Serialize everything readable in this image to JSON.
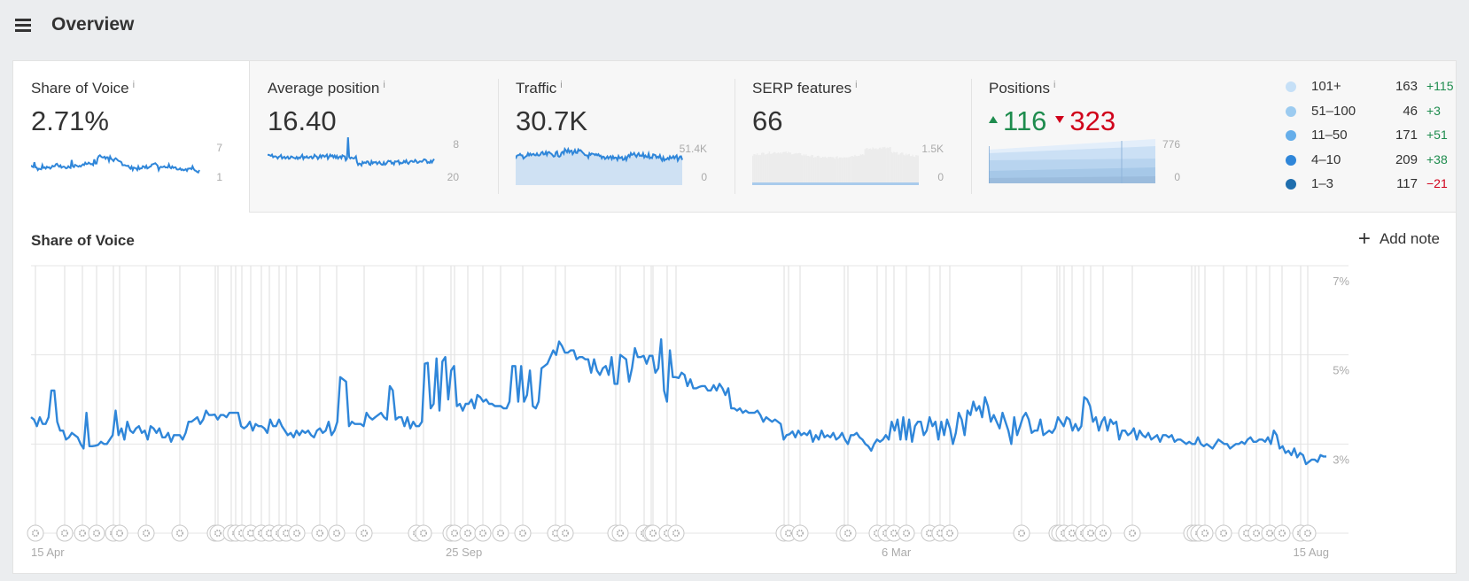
{
  "header": {
    "title": "Overview",
    "menu_icon": "hamburger-menu-icon"
  },
  "cards": [
    {
      "id": "share-of-voice",
      "label": "Share of Voice",
      "info": "i",
      "value": "2.71%",
      "axis_top": "7",
      "axis_bottom": "1",
      "active": true
    },
    {
      "id": "average-position",
      "label": "Average position",
      "info": "i",
      "value": "16.40",
      "axis_top": "8",
      "axis_bottom": "20"
    },
    {
      "id": "traffic",
      "label": "Traffic",
      "info": "i",
      "value": "30.7K",
      "axis_top": "51.4K",
      "axis_bottom": "0"
    },
    {
      "id": "serp-features",
      "label": "SERP features",
      "info": "i",
      "value": "66",
      "axis_top": "1.5K",
      "axis_bottom": "0"
    },
    {
      "id": "positions",
      "label": "Positions",
      "info": "i",
      "up": "116",
      "down": "323",
      "axis_top": "776",
      "axis_bottom": "0"
    }
  ],
  "positions_legend": [
    {
      "label": "101+",
      "count": "163",
      "delta": "+115",
      "color": "#c6e0f7",
      "trend": "up"
    },
    {
      "label": "51–100",
      "count": "46",
      "delta": "+3",
      "color": "#9ccbf0",
      "trend": "up"
    },
    {
      "label": "11–50",
      "count": "171",
      "delta": "+51",
      "color": "#66aeea",
      "trend": "up"
    },
    {
      "label": "4–10",
      "count": "209",
      "delta": "+38",
      "color": "#2f86d9",
      "trend": "up"
    },
    {
      "label": "1–3",
      "count": "117",
      "delta": "−21",
      "color": "#1f6eae",
      "trend": "down"
    }
  ],
  "colors": {
    "line": "#2f86d9",
    "up": "#1e8c4e",
    "down": "#d0021b",
    "grid": "#e6e6e6"
  },
  "chart": {
    "title": "Share of Voice",
    "add_note_label": "Add note"
  },
  "chart_data": {
    "type": "line",
    "title": "Share of Voice",
    "xlabel": "",
    "ylabel": "",
    "y_ticks": [
      "7%",
      "5%",
      "3%"
    ],
    "ylim": [
      1,
      7
    ],
    "x_tick_labels": [
      "15 Apr",
      "25 Sep",
      "6 Mar",
      "15 Aug"
    ],
    "grid": true,
    "series": [
      {
        "name": "Share of Voice",
        "values": [
          3.6,
          3.55,
          3.4,
          3.6,
          3.45,
          3.45,
          3.6,
          4.2,
          4.2,
          3.5,
          3.3,
          3.3,
          3.1,
          3.15,
          3.25,
          3.2,
          3.15,
          3.0,
          2.9,
          3.7,
          2.95,
          2.95,
          2.96,
          2.98,
          3.05,
          3.0,
          3.0,
          3.1,
          3.2,
          3.75,
          3.2,
          3.35,
          3.1,
          3.5,
          3.3,
          3.25,
          3.35,
          3.4,
          3.25,
          3.3,
          3.1,
          3.4,
          3.35,
          3.25,
          3.35,
          3.15,
          3.15,
          3.25,
          3.05,
          3.2,
          3.2,
          3.2,
          3.1,
          3.25,
          3.5,
          3.5,
          3.55,
          3.6,
          3.45,
          3.55,
          3.75,
          3.65,
          3.65,
          3.66,
          3.55,
          3.65,
          3.65,
          3.6,
          3.7,
          3.7,
          3.7,
          3.7,
          3.4,
          3.35,
          3.4,
          3.5,
          3.3,
          3.45,
          3.4,
          3.4,
          3.35,
          3.25,
          3.55,
          3.4,
          3.4,
          3.55,
          3.4,
          3.3,
          3.2,
          3.25,
          3.15,
          3.3,
          3.2,
          3.3,
          3.25,
          3.3,
          3.2,
          3.15,
          3.3,
          3.35,
          3.25,
          3.3,
          3.5,
          3.2,
          3.3,
          3.5,
          4.5,
          4.45,
          4.4,
          3.4,
          3.5,
          3.45,
          3.45,
          3.45,
          3.4,
          3.7,
          3.6,
          3.55,
          3.6,
          3.65,
          3.7,
          3.6,
          3.55,
          4.3,
          4.2,
          3.55,
          3.6,
          3.6,
          3.4,
          3.6,
          3.35,
          3.5,
          3.4,
          3.4,
          3.5,
          4.8,
          4.82,
          3.8,
          3.9,
          4.92,
          3.75,
          4.85,
          4.95,
          4.0,
          4.65,
          4.75,
          3.85,
          3.9,
          3.75,
          3.9,
          3.9,
          4.0,
          3.8,
          4.1,
          4.05,
          3.95,
          4.0,
          3.9,
          3.9,
          3.85,
          3.85,
          3.85,
          3.8,
          3.8,
          3.95,
          4.75,
          4.75,
          3.95,
          4.75,
          3.95,
          4.1,
          4.65,
          3.85,
          3.8,
          3.95,
          4.7,
          4.75,
          4.8,
          4.95,
          5.1,
          5.0,
          5.3,
          5.2,
          5.05,
          5.05,
          5.1,
          5.1,
          4.9,
          4.95,
          4.95,
          4.9,
          4.9,
          4.6,
          4.9,
          4.65,
          4.55,
          4.7,
          4.75,
          4.55,
          4.95,
          4.35,
          4.35,
          5.0,
          4.95,
          4.9,
          4.4,
          4.7,
          5.15,
          4.95,
          4.95,
          4.98,
          4.8,
          4.98,
          4.98,
          4.6,
          4.7,
          5.35,
          4.2,
          3.95,
          5.1,
          4.5,
          4.5,
          4.48,
          4.6,
          4.55,
          4.3,
          4.45,
          4.25,
          4.25,
          4.28,
          4.3,
          4.3,
          4.2,
          4.2,
          4.32,
          4.2,
          4.35,
          4.25,
          4.1,
          4.25,
          3.8,
          3.8,
          3.75,
          3.8,
          3.7,
          3.75,
          3.7,
          3.7,
          3.7,
          3.75,
          3.65,
          3.5,
          3.6,
          3.55,
          3.5,
          3.55,
          3.5,
          3.45,
          3.1,
          3.2,
          3.22,
          3.28,
          3.15,
          3.3,
          3.2,
          3.25,
          3.2,
          3.3,
          3.05,
          3.2,
          3.1,
          3.3,
          3.15,
          3.2,
          3.15,
          3.25,
          3.1,
          3.15,
          3.25,
          3.1,
          3.0,
          3.2,
          3.2,
          3.25,
          3.15,
          3.1,
          3.0,
          2.95,
          2.85,
          3.0,
          3.1,
          3.05,
          3.1,
          3.2,
          3.1,
          3.5,
          3.3,
          3.55,
          3.1,
          3.6,
          3.1,
          3.55,
          3.05,
          3.4,
          3.5,
          3.5,
          3.2,
          3.3,
          3.6,
          3.4,
          3.5,
          3.1,
          3.5,
          3.2,
          3.55,
          3.35,
          3.0,
          3.25,
          3.7,
          3.55,
          3.2,
          3.75,
          3.65,
          3.95,
          3.75,
          3.85,
          3.6,
          4.05,
          3.85,
          3.5,
          3.65,
          3.5,
          3.35,
          3.7,
          3.5,
          3.3,
          3.0,
          3.6,
          3.2,
          3.4,
          3.6,
          3.7,
          3.55,
          3.25,
          3.3,
          3.3,
          3.55,
          3.2,
          3.25,
          3.3,
          3.25,
          3.35,
          3.6,
          3.5,
          3.4,
          3.6,
          3.55,
          3.3,
          3.45,
          3.3,
          3.4,
          4.05,
          4.0,
          3.85,
          3.5,
          3.6,
          3.3,
          3.5,
          3.6,
          3.3,
          3.55,
          3.45,
          3.5,
          3.1,
          3.3,
          3.3,
          3.2,
          3.25,
          3.35,
          3.1,
          3.3,
          3.2,
          3.15,
          3.25,
          3.1,
          3.15,
          3.2,
          3.05,
          3.2,
          3.2,
          3.15,
          3.2,
          3.05,
          3.1,
          3.1,
          3.05,
          3.0,
          3.05,
          3.0,
          3.0,
          3.15,
          3.0,
          2.95,
          3.0,
          2.95,
          2.9,
          3.0,
          3.1,
          3.05,
          3.0,
          3.0,
          2.9,
          2.95,
          3.0,
          3.0,
          3.05,
          3.0,
          3.1,
          3.15,
          3.05,
          3.05,
          3.1,
          3.1,
          3.05,
          3.15,
          3.0,
          3.3,
          3.2,
          2.9,
          2.95,
          2.8,
          2.85,
          2.75,
          2.9,
          2.7,
          2.8,
          2.75,
          2.55,
          2.6,
          2.65,
          2.65,
          2.6,
          2.75,
          2.72,
          2.72
        ]
      }
    ],
    "annotation_markers": "gear icons along x-axis baseline at ~100 note dates"
  }
}
